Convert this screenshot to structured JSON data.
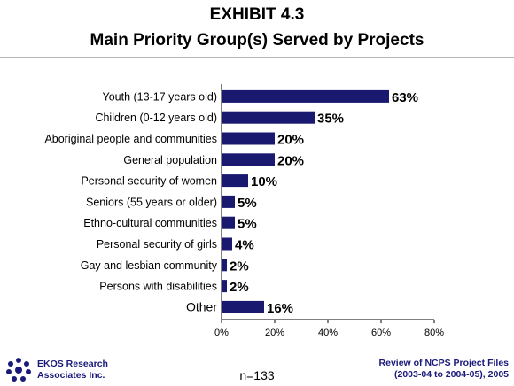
{
  "header": {
    "title_line1": "EXHIBIT 4.3",
    "title_line2": "Main Priority Group(s) Served by Projects"
  },
  "chart_data": {
    "type": "bar",
    "orientation": "horizontal",
    "categories": [
      "Youth (13-17 years old)",
      "Children (0-12 years old)",
      "Aboriginal people and communities",
      "General population",
      "Personal security of women",
      "Seniors (55 years or older)",
      "Ethno-cultural communities",
      "Personal security of girls",
      "Gay and lesbian community",
      "Persons with disabilities",
      "Other"
    ],
    "values": [
      63,
      35,
      20,
      20,
      10,
      5,
      5,
      4,
      2,
      2,
      16
    ],
    "value_labels": [
      "63%",
      "35%",
      "20%",
      "20%",
      "10%",
      "5%",
      "5%",
      "4%",
      "2%",
      "2%",
      "16%"
    ],
    "x_ticks": [
      0,
      20,
      40,
      60,
      80
    ],
    "x_tick_labels": [
      "0%",
      "20%",
      "40%",
      "60%",
      "80%"
    ],
    "xlim": [
      0,
      80
    ],
    "grid": false,
    "bar_color": "#191970"
  },
  "footer": {
    "org_line1": "EKOS Research",
    "org_line2": "Associates Inc.",
    "sample": "n=133",
    "source_line1": "Review of NCPS Project Files",
    "source_line2": "(2003-04 to 2004-05), 2005"
  },
  "colors": {
    "bar": "#191970",
    "logo": "#1a1a7a",
    "rule": "#b5b5b5"
  }
}
